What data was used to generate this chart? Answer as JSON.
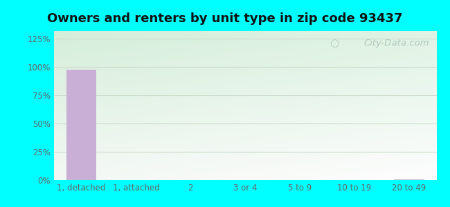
{
  "title": "Owners and renters by unit type in zip code 93437",
  "categories": [
    "1, detached",
    "1, attached",
    "2",
    "3 or 4",
    "5 to 9",
    "10 to 19",
    "20 to 49"
  ],
  "values": [
    97.5,
    0,
    0,
    0,
    0,
    0.3,
    0.5
  ],
  "bar_color": "#c9aed6",
  "yticks": [
    0,
    25,
    50,
    75,
    100,
    125
  ],
  "ytick_labels": [
    "0%",
    "25%",
    "50%",
    "75%",
    "100%",
    "125%"
  ],
  "ylim": [
    0,
    132
  ],
  "bg_outer": "#00ffff",
  "bg_inner_top": "#dff0e0",
  "bg_inner_bottom": "#f5fdf5",
  "grid_color": "#ccddcc",
  "watermark_text": "City-Data.com",
  "title_fontsize": 13,
  "tick_fontsize": 8.5,
  "bar_width": 0.55
}
